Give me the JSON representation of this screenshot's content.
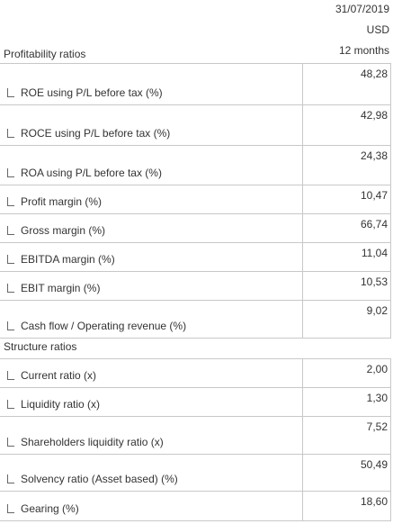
{
  "header": {
    "date": "31/07/2019",
    "currency": "USD",
    "period": "12 months"
  },
  "profitability": {
    "title": "Profitability ratios",
    "rows": [
      {
        "label": "ROE using P/L before tax (%)",
        "value": "48,28"
      },
      {
        "label": "ROCE using P/L before tax (%)",
        "value": "42,98"
      },
      {
        "label": "ROA using P/L before tax (%)",
        "value": "24,38"
      },
      {
        "label": "Profit margin (%)",
        "value": "10,47"
      },
      {
        "label": "Gross margin (%)",
        "value": "66,74"
      },
      {
        "label": "EBITDA margin (%)",
        "value": "11,04"
      },
      {
        "label": "EBIT margin (%)",
        "value": "10,53"
      },
      {
        "label": "Cash flow / Operating revenue (%)",
        "value": "9,02"
      }
    ]
  },
  "structure": {
    "title": "Structure ratios",
    "rows": [
      {
        "label": "Current ratio (x)",
        "value": "2,00"
      },
      {
        "label": "Liquidity ratio (x)",
        "value": "1,30"
      },
      {
        "label": "Shareholders liquidity ratio (x)",
        "value": "7,52"
      },
      {
        "label": "Solvency ratio (Asset based) (%)",
        "value": "50,49"
      },
      {
        "label": "Gearing (%)",
        "value": "18,60"
      }
    ]
  }
}
